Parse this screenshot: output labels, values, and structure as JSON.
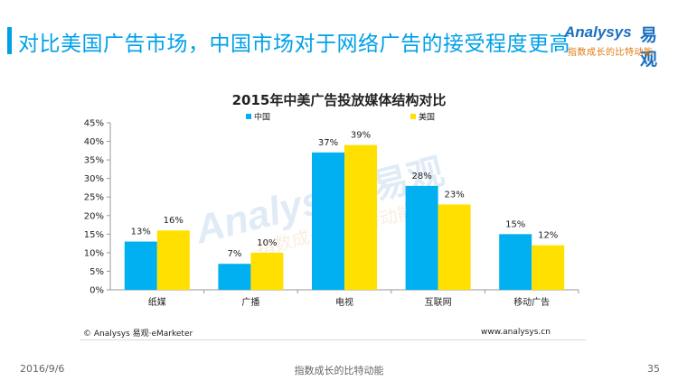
{
  "header": {
    "title": "对比美国广告市场，中国市场对于网络广告的接受程度更高",
    "brand_name": "Analysys",
    "brand_name_cn": "易观",
    "brand_slogan": "指数成长的比特动能",
    "accent_color": "#00a0e9"
  },
  "chart_data": {
    "type": "bar",
    "title": "2015年中美广告投放媒体结构对比",
    "categories": [
      "纸媒",
      "广播",
      "电视",
      "互联网",
      "移动广告"
    ],
    "series": [
      {
        "name": "中国",
        "values": [
          13,
          7,
          37,
          28,
          15
        ],
        "labels": [
          "13%",
          "7%",
          "37%",
          "28%",
          "15%"
        ],
        "color": "#00b0f0"
      },
      {
        "name": "美国",
        "values": [
          16,
          10,
          39,
          23,
          12
        ],
        "labels": [
          "16%",
          "10%",
          "39%",
          "23%",
          "12%"
        ],
        "color": "#ffe000"
      }
    ],
    "ylim": [
      0,
      45
    ],
    "y_ticks": [
      "0%",
      "5%",
      "10%",
      "15%",
      "20%",
      "25%",
      "30%",
      "35%",
      "40%",
      "45%"
    ],
    "xlabel": "",
    "ylabel": "",
    "grid": false,
    "legend_position": "top"
  },
  "source": {
    "left": "© Analysys 易观·eMarketer",
    "right": "www.analysys.cn"
  },
  "footer": {
    "date": "2016/9/6",
    "slogan": "指数成长的比特动能",
    "page": "35"
  }
}
